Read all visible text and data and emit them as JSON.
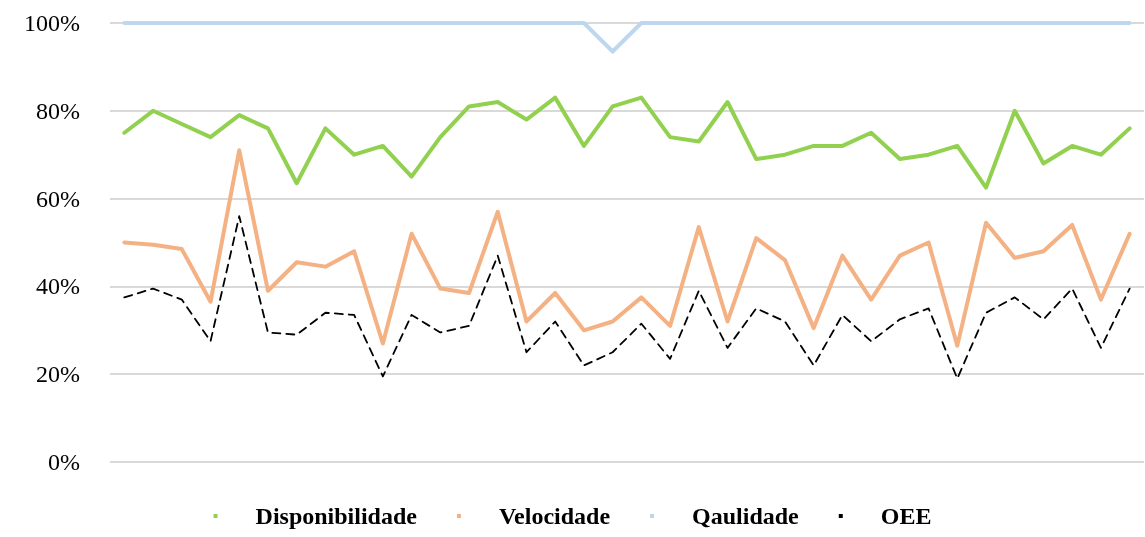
{
  "chart_data": {
    "type": "line",
    "categories": [
      null,
      null,
      null,
      null,
      null,
      null,
      null,
      null,
      null,
      null,
      null,
      null,
      null,
      null,
      null,
      null,
      null,
      null,
      null,
      null,
      null,
      null,
      null,
      null,
      null,
      null,
      null,
      null,
      null,
      null,
      null,
      null,
      null,
      null,
      null,
      null
    ],
    "ylim": [
      0,
      100
    ],
    "yticks": [
      {
        "value": 0,
        "label": "0%"
      },
      {
        "value": 20,
        "label": "20%"
      },
      {
        "value": 40,
        "label": "40%"
      },
      {
        "value": 60,
        "label": "60%"
      },
      {
        "value": 80,
        "label": "80%"
      },
      {
        "value": 100,
        "label": "100%"
      }
    ],
    "grid": "y",
    "legend": "bottom",
    "marker": "none",
    "series": [
      {
        "name": "Disponibilidade",
        "color": "#92d050",
        "line_style": "solid",
        "values": [
          75,
          80,
          77,
          74,
          79,
          76,
          63.5,
          76,
          70,
          72,
          65,
          74,
          81,
          82,
          78,
          83,
          72,
          81,
          83,
          74,
          73,
          82,
          69,
          70,
          72,
          72,
          75,
          69,
          70,
          72,
          62.5,
          80,
          68,
          72,
          70,
          76
        ]
      },
      {
        "name": "Velocidade",
        "color": "#f4b183",
        "line_style": "solid",
        "values": [
          50,
          49.5,
          48.5,
          36.5,
          71,
          39,
          45.5,
          44.5,
          48,
          27,
          52,
          39.5,
          38.5,
          57,
          32,
          38.5,
          30,
          32,
          37.5,
          31,
          53.5,
          32,
          51,
          46,
          30.5,
          47,
          37,
          47,
          50,
          26.5,
          54.5,
          46.5,
          48,
          54,
          37,
          52
        ]
      },
      {
        "name": "Qaulidade",
        "color": "#bdd7ee",
        "line_style": "solid",
        "values": [
          100,
          100,
          100,
          100,
          100,
          100,
          100,
          100,
          100,
          100,
          100,
          100,
          100,
          100,
          100,
          100,
          100,
          93.5,
          100,
          100,
          100,
          100,
          100,
          100,
          100,
          100,
          100,
          100,
          100,
          100,
          100,
          100,
          100,
          100,
          100,
          100
        ]
      },
      {
        "name": "OEE",
        "color": "#000000",
        "line_style": "dashed",
        "values": [
          37.5,
          39.5,
          37,
          27.5,
          56,
          29.5,
          29,
          34,
          33.5,
          19.5,
          33.5,
          29.5,
          31,
          47,
          25,
          32,
          22,
          25,
          31.5,
          23.5,
          39,
          26,
          35,
          32,
          22,
          33.5,
          27.5,
          32.5,
          35,
          19,
          34,
          37.5,
          32.5,
          39.5,
          26,
          39.5
        ]
      }
    ]
  }
}
